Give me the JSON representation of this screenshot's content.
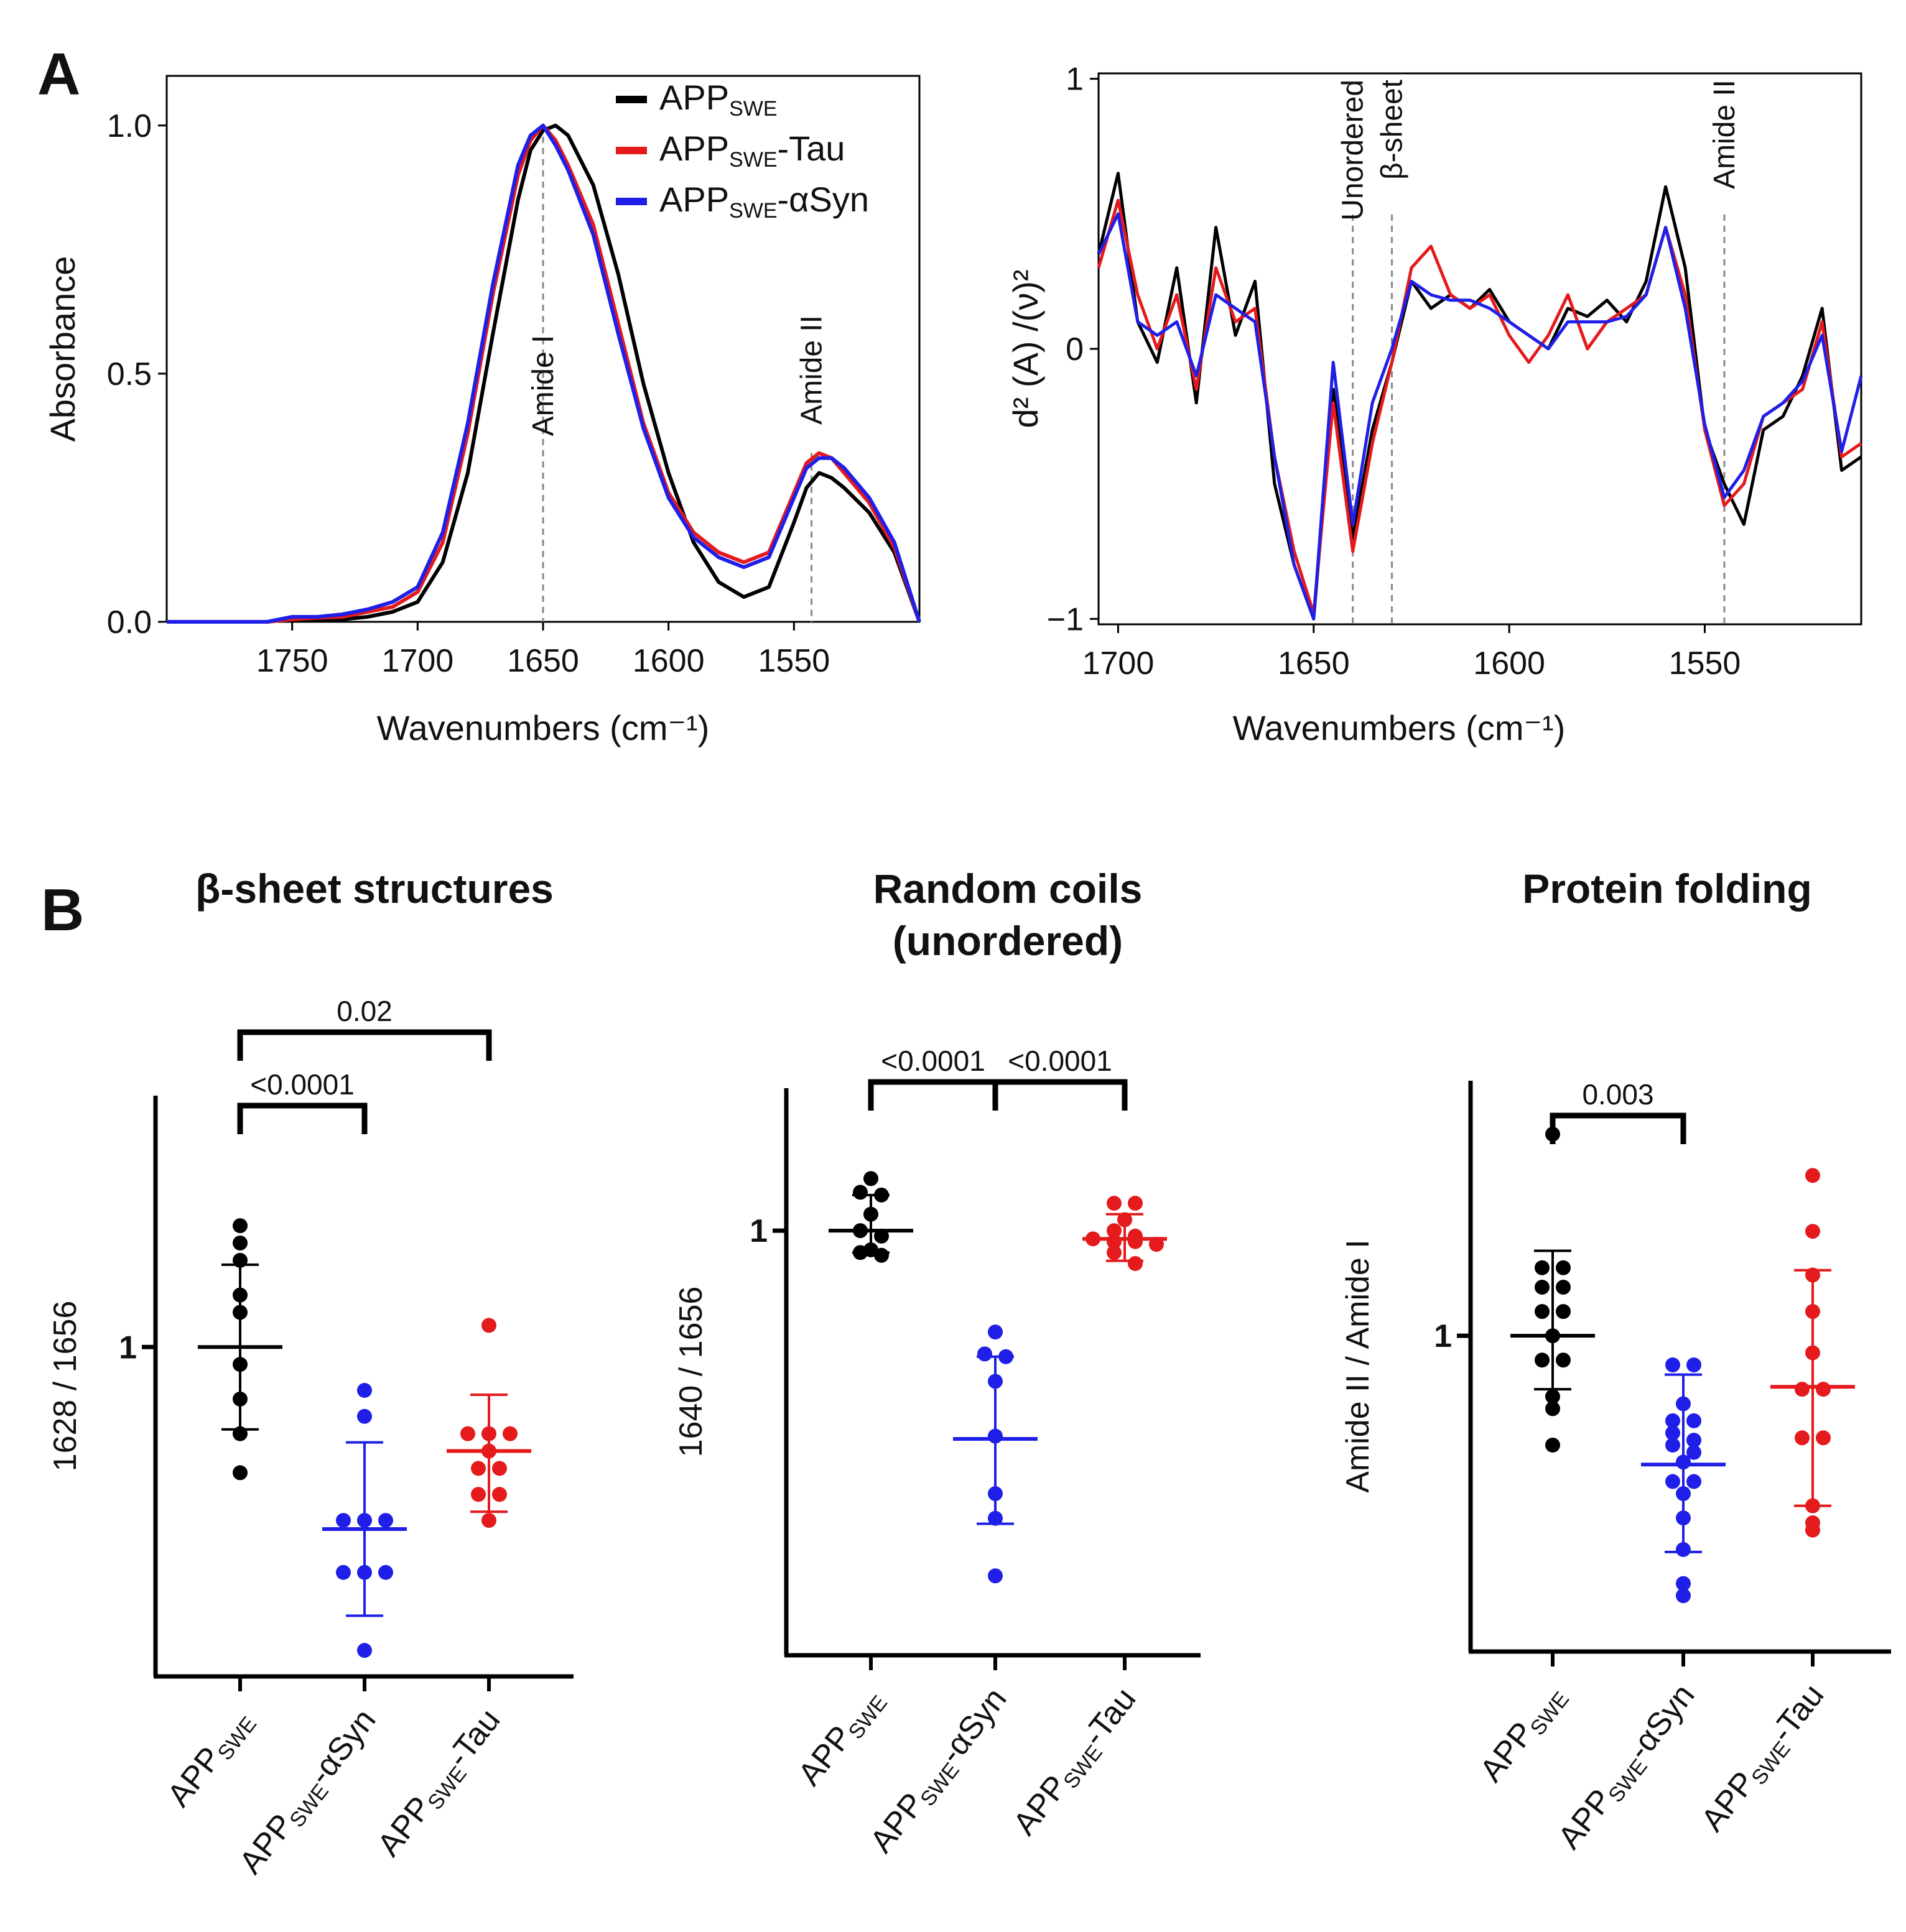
{
  "panel_letters": {
    "a": "A",
    "b": "B"
  },
  "colors": {
    "APP_SWE": "#000000",
    "APP_SWE_Tau": "#e41a1c",
    "APP_SWE_aSyn": "#1f1fe8"
  },
  "chart_data": [
    {
      "type": "line",
      "panel": "A-left",
      "title": "",
      "xlabel": "Wavenumbers (cm⁻¹)",
      "ylabel": "Absorbance",
      "xlim": [
        1800,
        1500
      ],
      "ylim": [
        0,
        1.1
      ],
      "x_tick_labels": [
        "1750",
        "1700",
        "1650",
        "1600",
        "1550"
      ],
      "x_ticks": [
        1750,
        1700,
        1650,
        1600,
        1550
      ],
      "y_tick_labels": [
        "0.0",
        "0.5",
        "1.0"
      ],
      "y_ticks": [
        0,
        0.5,
        1.0
      ],
      "legend": {
        "position": "top-right",
        "entries": [
          {
            "main": "APP",
            "sub": "SWE",
            "suffix": "",
            "color": "#000000"
          },
          {
            "main": "APP",
            "sub": "SWE",
            "suffix": "-Tau",
            "color": "#e41a1c"
          },
          {
            "main": "APP",
            "sub": "SWE",
            "suffix": "-αSyn",
            "color": "#1f1fe8"
          }
        ]
      },
      "annotations": [
        {
          "text": "Amide I",
          "x": 1650
        },
        {
          "text": "Amide II",
          "x": 1543
        }
      ],
      "x": [
        1800,
        1780,
        1760,
        1750,
        1740,
        1730,
        1720,
        1710,
        1700,
        1690,
        1680,
        1670,
        1660,
        1655,
        1650,
        1645,
        1640,
        1630,
        1620,
        1610,
        1600,
        1590,
        1580,
        1570,
        1560,
        1550,
        1545,
        1540,
        1535,
        1530,
        1520,
        1510,
        1500
      ],
      "series": [
        {
          "name": "APP_SWE",
          "color": "#000000",
          "values": [
            0,
            0,
            0,
            0.005,
            0.005,
            0.005,
            0.01,
            0.02,
            0.04,
            0.12,
            0.3,
            0.58,
            0.85,
            0.95,
            0.99,
            1.0,
            0.98,
            0.88,
            0.7,
            0.48,
            0.3,
            0.16,
            0.08,
            0.05,
            0.07,
            0.2,
            0.27,
            0.3,
            0.29,
            0.27,
            0.22,
            0.14,
            0
          ]
        },
        {
          "name": "APP_SWE-Tau",
          "color": "#e41a1c",
          "values": [
            0,
            0,
            0,
            0.005,
            0.008,
            0.01,
            0.02,
            0.03,
            0.06,
            0.16,
            0.38,
            0.66,
            0.9,
            0.97,
            1.0,
            0.97,
            0.92,
            0.8,
            0.6,
            0.4,
            0.26,
            0.18,
            0.14,
            0.12,
            0.14,
            0.26,
            0.32,
            0.34,
            0.33,
            0.3,
            0.24,
            0.15,
            0
          ]
        },
        {
          "name": "APP_SWE-αSyn",
          "color": "#1f1fe8",
          "values": [
            0,
            0,
            0,
            0.01,
            0.01,
            0.015,
            0.025,
            0.04,
            0.07,
            0.18,
            0.4,
            0.68,
            0.92,
            0.98,
            1.0,
            0.96,
            0.91,
            0.78,
            0.58,
            0.39,
            0.25,
            0.17,
            0.13,
            0.11,
            0.13,
            0.25,
            0.31,
            0.33,
            0.33,
            0.31,
            0.25,
            0.16,
            0
          ]
        }
      ]
    },
    {
      "type": "line",
      "panel": "A-right",
      "title": "",
      "xlabel": "Wavenumbers (cm⁻¹)",
      "ylabel": "d² (A) /(ν)²",
      "xlim": [
        1705,
        1510
      ],
      "ylim": [
        -1.02,
        1.02
      ],
      "x_tick_labels": [
        "1700",
        "1650",
        "1600",
        "1550"
      ],
      "x_ticks": [
        1700,
        1650,
        1600,
        1550
      ],
      "y_tick_labels": [
        "−1",
        "0",
        "1"
      ],
      "y_ticks": [
        -1,
        0,
        1
      ],
      "annotations": [
        {
          "text": "Unordered",
          "x": 1640
        },
        {
          "text": "β-sheet",
          "x": 1630
        },
        {
          "text": "Amide II",
          "x": 1545
        }
      ],
      "x": [
        1705,
        1700,
        1695,
        1690,
        1685,
        1680,
        1675,
        1670,
        1665,
        1660,
        1655,
        1650,
        1645,
        1640,
        1635,
        1630,
        1625,
        1620,
        1615,
        1610,
        1605,
        1600,
        1595,
        1590,
        1585,
        1580,
        1575,
        1570,
        1565,
        1560,
        1555,
        1550,
        1545,
        1540,
        1535,
        1530,
        1525,
        1520,
        1515,
        1510
      ],
      "series": [
        {
          "name": "APP_SWE",
          "color": "#000000",
          "values": [
            0.35,
            0.65,
            0.1,
            -0.05,
            0.3,
            -0.2,
            0.45,
            0.05,
            0.25,
            -0.5,
            -0.8,
            -1.0,
            -0.15,
            -0.7,
            -0.3,
            -0.05,
            0.25,
            0.15,
            0.2,
            0.15,
            0.22,
            0.1,
            0.05,
            0.0,
            0.15,
            0.12,
            0.18,
            0.1,
            0.25,
            0.6,
            0.3,
            -0.3,
            -0.5,
            -0.65,
            -0.3,
            -0.25,
            -0.1,
            0.15,
            -0.45,
            -0.4
          ]
        },
        {
          "name": "APP_SWE-Tau",
          "color": "#e41a1c",
          "values": [
            0.3,
            0.55,
            0.2,
            0.0,
            0.2,
            -0.15,
            0.3,
            0.1,
            0.15,
            -0.4,
            -0.75,
            -0.98,
            -0.2,
            -0.75,
            -0.35,
            -0.05,
            0.3,
            0.38,
            0.2,
            0.15,
            0.2,
            0.05,
            -0.05,
            0.05,
            0.2,
            0.0,
            0.1,
            0.15,
            0.2,
            0.45,
            0.2,
            -0.3,
            -0.58,
            -0.5,
            -0.25,
            -0.2,
            -0.15,
            0.1,
            -0.4,
            -0.35
          ]
        },
        {
          "name": "APP_SWE-αSyn",
          "color": "#1f1fe8",
          "values": [
            0.35,
            0.5,
            0.1,
            0.05,
            0.1,
            -0.1,
            0.2,
            0.15,
            0.1,
            -0.4,
            -0.8,
            -1.0,
            -0.05,
            -0.65,
            -0.2,
            0.0,
            0.25,
            0.2,
            0.18,
            0.18,
            0.15,
            0.1,
            0.05,
            0.0,
            0.1,
            0.1,
            0.1,
            0.12,
            0.2,
            0.45,
            0.15,
            -0.28,
            -0.55,
            -0.45,
            -0.25,
            -0.2,
            -0.12,
            0.05,
            -0.38,
            -0.1
          ]
        }
      ]
    },
    {
      "type": "scatter",
      "panel": "B-1",
      "title": "β-sheet structures",
      "ylabel": "1628 / 1656",
      "y_tick_labels": [
        "1"
      ],
      "y_ticks": [
        1
      ],
      "ylim": [
        0.62,
        1.29
      ],
      "categories": [
        {
          "main": "APP",
          "sub": "SWE",
          "suffix": ""
        },
        {
          "main": "APP",
          "sub": "SWE",
          "suffix": "-αSyn"
        },
        {
          "main": "APP",
          "sub": "SWE",
          "suffix": "-Tau"
        }
      ],
      "series": [
        {
          "name": "APP_SWE",
          "color": "#000000",
          "mean": 1.0,
          "sd_low": 0.905,
          "sd_high": 1.095,
          "values": [
            1.14,
            1.12,
            1.1,
            1.06,
            1.04,
            0.98,
            0.94,
            0.9,
            0.855
          ]
        },
        {
          "name": "APP_SWE-αSyn",
          "color": "#1f1fe8",
          "mean": 0.79,
          "sd_low": 0.69,
          "sd_high": 0.89,
          "values": [
            0.95,
            0.92,
            0.8,
            0.8,
            0.8,
            0.74,
            0.74,
            0.74,
            0.65
          ]
        },
        {
          "name": "APP_SWE-Tau",
          "color": "#e41a1c",
          "mean": 0.88,
          "sd_low": 0.81,
          "sd_high": 0.945,
          "values": [
            1.025,
            0.9,
            0.9,
            0.9,
            0.88,
            0.86,
            0.86,
            0.83,
            0.83,
            0.8
          ]
        }
      ],
      "comparisons": [
        {
          "from": 0,
          "to": 1,
          "text": "<0.0001"
        },
        {
          "from": 0,
          "to": 2,
          "text": "0.02"
        }
      ]
    },
    {
      "type": "scatter",
      "panel": "B-2",
      "title": [
        "Random coils",
        "(unordered)"
      ],
      "ylabel": "1640 / 1656",
      "y_tick_labels": [
        "1"
      ],
      "y_ticks": [
        1
      ],
      "ylim": [
        0.845,
        1.052
      ],
      "categories": [
        {
          "main": "APP",
          "sub": "SWE",
          "suffix": ""
        },
        {
          "main": "APP",
          "sub": "SWE",
          "suffix": "-αSyn"
        },
        {
          "main": "APP",
          "sub": "SWE",
          "suffix": "-Tau"
        }
      ],
      "series": [
        {
          "name": "APP_SWE",
          "color": "#000000",
          "mean": 1.0,
          "sd_low": 0.992,
          "sd_high": 1.013,
          "values": [
            1.019,
            1.014,
            1.013,
            1.006,
            1.0,
            0.998,
            0.993,
            0.992,
            0.991
          ]
        },
        {
          "name": "APP_SWE-αSyn",
          "color": "#1f1fe8",
          "mean": 0.924,
          "sd_low": 0.893,
          "sd_high": 0.954,
          "values": [
            0.963,
            0.955,
            0.954,
            0.945,
            0.925,
            0.904,
            0.895,
            0.874
          ]
        },
        {
          "name": "APP_SWE-Tau",
          "color": "#e41a1c",
          "mean": 0.997,
          "sd_low": 0.989,
          "sd_high": 1.006,
          "values": [
            1.01,
            1.01,
            1.004,
            1.0,
            0.998,
            0.997,
            0.996,
            0.996,
            0.995,
            0.992,
            0.988
          ]
        }
      ],
      "comparisons": [
        {
          "from": 0,
          "to": 1,
          "text": "<0.0001"
        },
        {
          "from": 1,
          "to": 2,
          "text": "<0.0001"
        }
      ]
    },
    {
      "type": "scatter",
      "panel": "B-3",
      "title": "Protein folding",
      "ylabel": "Amide  II / Amide  I",
      "y_tick_labels": [
        "1"
      ],
      "y_ticks": [
        1
      ],
      "ylim": [
        0.87,
        1.105
      ],
      "categories": [
        {
          "main": "APP",
          "sub": "SWE",
          "suffix": ""
        },
        {
          "main": "APP",
          "sub": "SWE",
          "suffix": "-αSyn"
        },
        {
          "main": "APP",
          "sub": "SWE",
          "suffix": "-Tau"
        }
      ],
      "series": [
        {
          "name": "APP_SWE",
          "color": "#000000",
          "mean": 1.0,
          "sd_low": 0.978,
          "sd_high": 1.035,
          "values": [
            1.083,
            1.028,
            1.028,
            1.02,
            1.02,
            1.01,
            1.01,
            1.0,
            0.99,
            0.99,
            0.975,
            0.97,
            0.955
          ]
        },
        {
          "name": "APP_SWE-αSyn",
          "color": "#1f1fe8",
          "mean": 0.947,
          "sd_low": 0.911,
          "sd_high": 0.984,
          "values": [
            0.988,
            0.988,
            0.972,
            0.965,
            0.965,
            0.96,
            0.957,
            0.955,
            0.952,
            0.948,
            0.94,
            0.94,
            0.935,
            0.925,
            0.912,
            0.898,
            0.893
          ]
        },
        {
          "name": "APP_SWE-Tau",
          "color": "#e41a1c",
          "mean": 0.979,
          "sd_low": 0.93,
          "sd_high": 1.027,
          "values": [
            1.066,
            1.043,
            1.025,
            1.01,
            0.993,
            0.978,
            0.978,
            0.958,
            0.958,
            0.93,
            0.923,
            0.92
          ]
        }
      ],
      "comparisons": [
        {
          "from": 0,
          "to": 1,
          "text": "0.003"
        }
      ]
    }
  ]
}
